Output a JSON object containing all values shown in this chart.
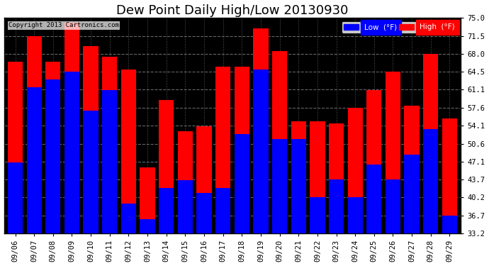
{
  "title": "Dew Point Daily High/Low 20130930",
  "dates": [
    "09/06",
    "09/07",
    "09/08",
    "09/09",
    "09/10",
    "09/11",
    "09/12",
    "09/13",
    "09/14",
    "09/15",
    "09/16",
    "09/17",
    "09/18",
    "09/19",
    "09/20",
    "09/21",
    "09/22",
    "09/23",
    "09/24",
    "09/25",
    "09/26",
    "09/27",
    "09/28",
    "09/29"
  ],
  "low_values": [
    47.0,
    61.5,
    63.0,
    64.5,
    57.0,
    61.0,
    39.0,
    36.0,
    42.0,
    43.5,
    41.0,
    42.0,
    52.5,
    65.0,
    51.5,
    51.5,
    40.2,
    43.7,
    40.2,
    46.5,
    43.7,
    48.5,
    53.5,
    36.7
  ],
  "high_values": [
    66.5,
    71.5,
    66.5,
    74.0,
    69.5,
    67.5,
    65.0,
    46.0,
    59.0,
    53.0,
    54.0,
    65.5,
    65.5,
    73.0,
    68.5,
    55.0,
    55.0,
    54.5,
    57.5,
    61.0,
    64.5,
    58.0,
    68.0,
    55.5
  ],
  "ylim": [
    33.2,
    75.0
  ],
  "yticks": [
    33.2,
    36.7,
    40.2,
    43.7,
    47.1,
    50.6,
    54.1,
    57.6,
    61.1,
    64.5,
    68.0,
    71.5,
    75.0
  ],
  "low_color": "#0000FF",
  "high_color": "#FF0000",
  "bg_color": "#FFFFFF",
  "plot_bg_color": "#000000",
  "grid_color": "#808080",
  "title_fontsize": 13,
  "tick_fontsize": 7.5,
  "legend_low_label": "Low  (°F)",
  "legend_high_label": "High  (°F)"
}
